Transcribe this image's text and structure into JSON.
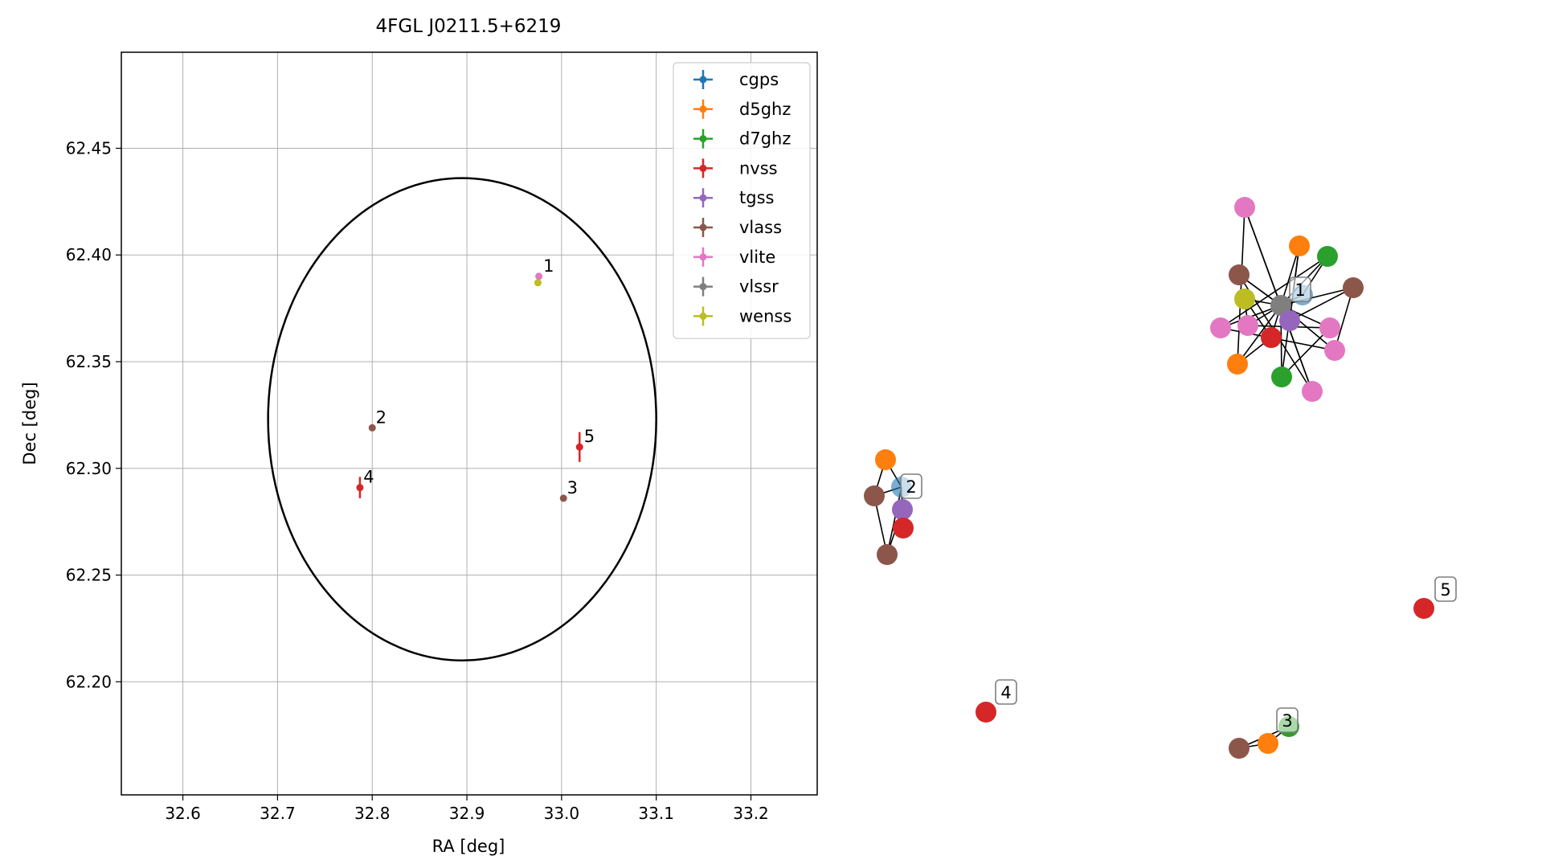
{
  "chart_data": [
    {
      "type": "scatter",
      "title": "4FGL J0211.5+6219",
      "xlabel": "RA [deg]",
      "ylabel": "Dec [deg]",
      "xlim": [
        32.535,
        33.27
      ],
      "ylim": [
        62.147,
        62.495
      ],
      "x_ticks": [
        "32.6",
        "32.7",
        "32.8",
        "32.9",
        "33.0",
        "33.1",
        "33.2"
      ],
      "y_ticks": [
        "62.20",
        "62.25",
        "62.30",
        "62.35",
        "62.40",
        "62.45"
      ],
      "grid": true,
      "legend_position": "top-right",
      "colors": {
        "cgps": "#1f77b4",
        "d5ghz": "#ff7f0e",
        "d7ghz": "#2ca02c",
        "nvss": "#d62728",
        "tgss": "#9467bd",
        "vlass": "#8c564b",
        "vlite": "#e377c2",
        "vlssr": "#7f7f7f",
        "wenss": "#bcbd22"
      },
      "series": [
        {
          "name": "cgps",
          "points": []
        },
        {
          "name": "d5ghz",
          "points": []
        },
        {
          "name": "d7ghz",
          "points": []
        },
        {
          "name": "nvss",
          "points": [
            {
              "x": 32.787,
              "y": 62.291,
              "yerr": 0.005
            },
            {
              "x": 33.019,
              "y": 62.31,
              "yerr": 0.007
            }
          ]
        },
        {
          "name": "tgss",
          "points": []
        },
        {
          "name": "vlass",
          "points": [
            {
              "x": 32.8,
              "y": 62.319,
              "yerr": 0
            },
            {
              "x": 33.002,
              "y": 62.286,
              "yerr": 0
            }
          ]
        },
        {
          "name": "vlite",
          "points": [
            {
              "x": 32.976,
              "y": 62.39,
              "yerr": 0
            }
          ]
        },
        {
          "name": "vlssr",
          "points": []
        },
        {
          "name": "wenss",
          "points": [
            {
              "x": 32.975,
              "y": 62.387,
              "yerr": 0
            }
          ]
        }
      ],
      "ellipse": {
        "ra_center": 32.895,
        "dec_center": 62.323,
        "ra_semi_axis": 0.205,
        "dec_semi_axis": 0.113
      },
      "annotations": [
        {
          "label": "1",
          "x": 32.979,
          "y": 62.393
        },
        {
          "label": "2",
          "x": 32.802,
          "y": 62.322
        },
        {
          "label": "3",
          "x": 33.004,
          "y": 62.289
        },
        {
          "label": "4",
          "x": 32.789,
          "y": 62.294
        },
        {
          "label": "5",
          "x": 33.022,
          "y": 62.313
        }
      ]
    },
    {
      "type": "network",
      "clusters": [
        {
          "label": "1",
          "nodes": [
            "cgps",
            "d5ghz",
            "d5ghz",
            "d7ghz",
            "d7ghz",
            "vlite",
            "vlite",
            "vlite",
            "vlite",
            "vlite",
            "vlite",
            "vlass",
            "vlass",
            "wenss",
            "vlssr",
            "tgss",
            "nvss"
          ]
        },
        {
          "label": "2",
          "nodes": [
            "cgps",
            "d5ghz",
            "vlass",
            "vlass",
            "tgss",
            "nvss"
          ]
        },
        {
          "label": "3",
          "nodes": [
            "d7ghz",
            "d5ghz",
            "vlass"
          ]
        },
        {
          "label": "4",
          "nodes": [
            "nvss"
          ]
        },
        {
          "label": "5",
          "nodes": [
            "nvss"
          ]
        }
      ]
    }
  ]
}
